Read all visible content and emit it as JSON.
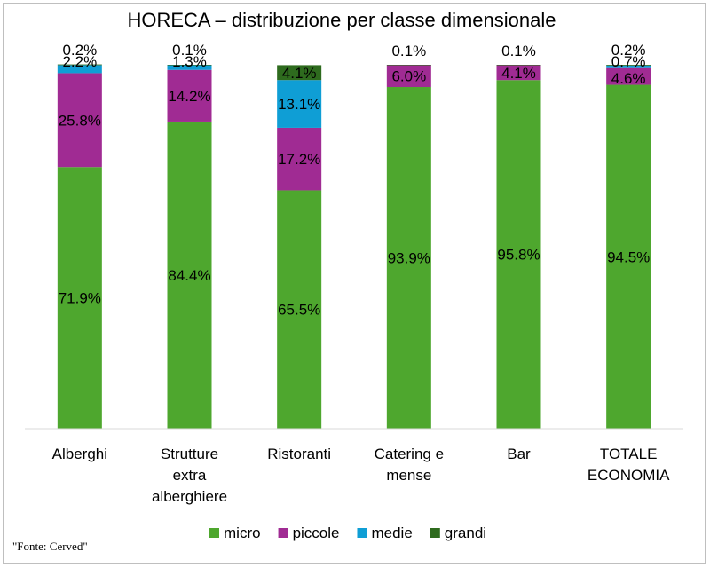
{
  "chart_data": {
    "type": "bar",
    "stacked": true,
    "title": "HORECA – distribuzione per classe dimensionale",
    "categories": [
      [
        "Alberghi"
      ],
      [
        "Strutture",
        "extra",
        "alberghiere"
      ],
      [
        "Ristoranti"
      ],
      [
        "Catering e",
        "mense"
      ],
      [
        "Bar"
      ],
      [
        "TOTALE",
        "ECONOMIA"
      ]
    ],
    "series": [
      {
        "name": "micro",
        "color": "#4ea72e",
        "values": [
          71.9,
          84.4,
          65.5,
          93.9,
          95.8,
          94.5
        ],
        "labels": [
          "71.9%",
          "84.4%",
          "65.5%",
          "93.9%",
          "95.8%",
          "94.5%"
        ]
      },
      {
        "name": "piccole",
        "color": "#a02b93",
        "values": [
          25.8,
          14.2,
          17.2,
          6.0,
          4.1,
          4.6
        ],
        "labels": [
          "25.8%",
          "14.2%",
          "17.2%",
          "6.0%",
          "4.1%",
          "4.6%"
        ]
      },
      {
        "name": "medie",
        "color": "#0f9ed5",
        "values": [
          2.2,
          1.3,
          13.1,
          0.0,
          0.0,
          0.7
        ],
        "labels": [
          "2.2%",
          "1.3%",
          "13.1%",
          "",
          "",
          "0.7%"
        ]
      },
      {
        "name": "grandi",
        "color": "#2e6b1e",
        "values": [
          0.2,
          0.1,
          4.1,
          0.1,
          0.1,
          0.2
        ],
        "labels": [
          "0.2%",
          "0.1%",
          "4.1%",
          "0.1%",
          "0.1%",
          "0.2%"
        ]
      }
    ],
    "ylim": [
      0,
      100
    ],
    "grid": false,
    "legend": "bottom",
    "xlabel": "",
    "ylabel": ""
  },
  "source_note": "\"Fonte: Cerved\""
}
